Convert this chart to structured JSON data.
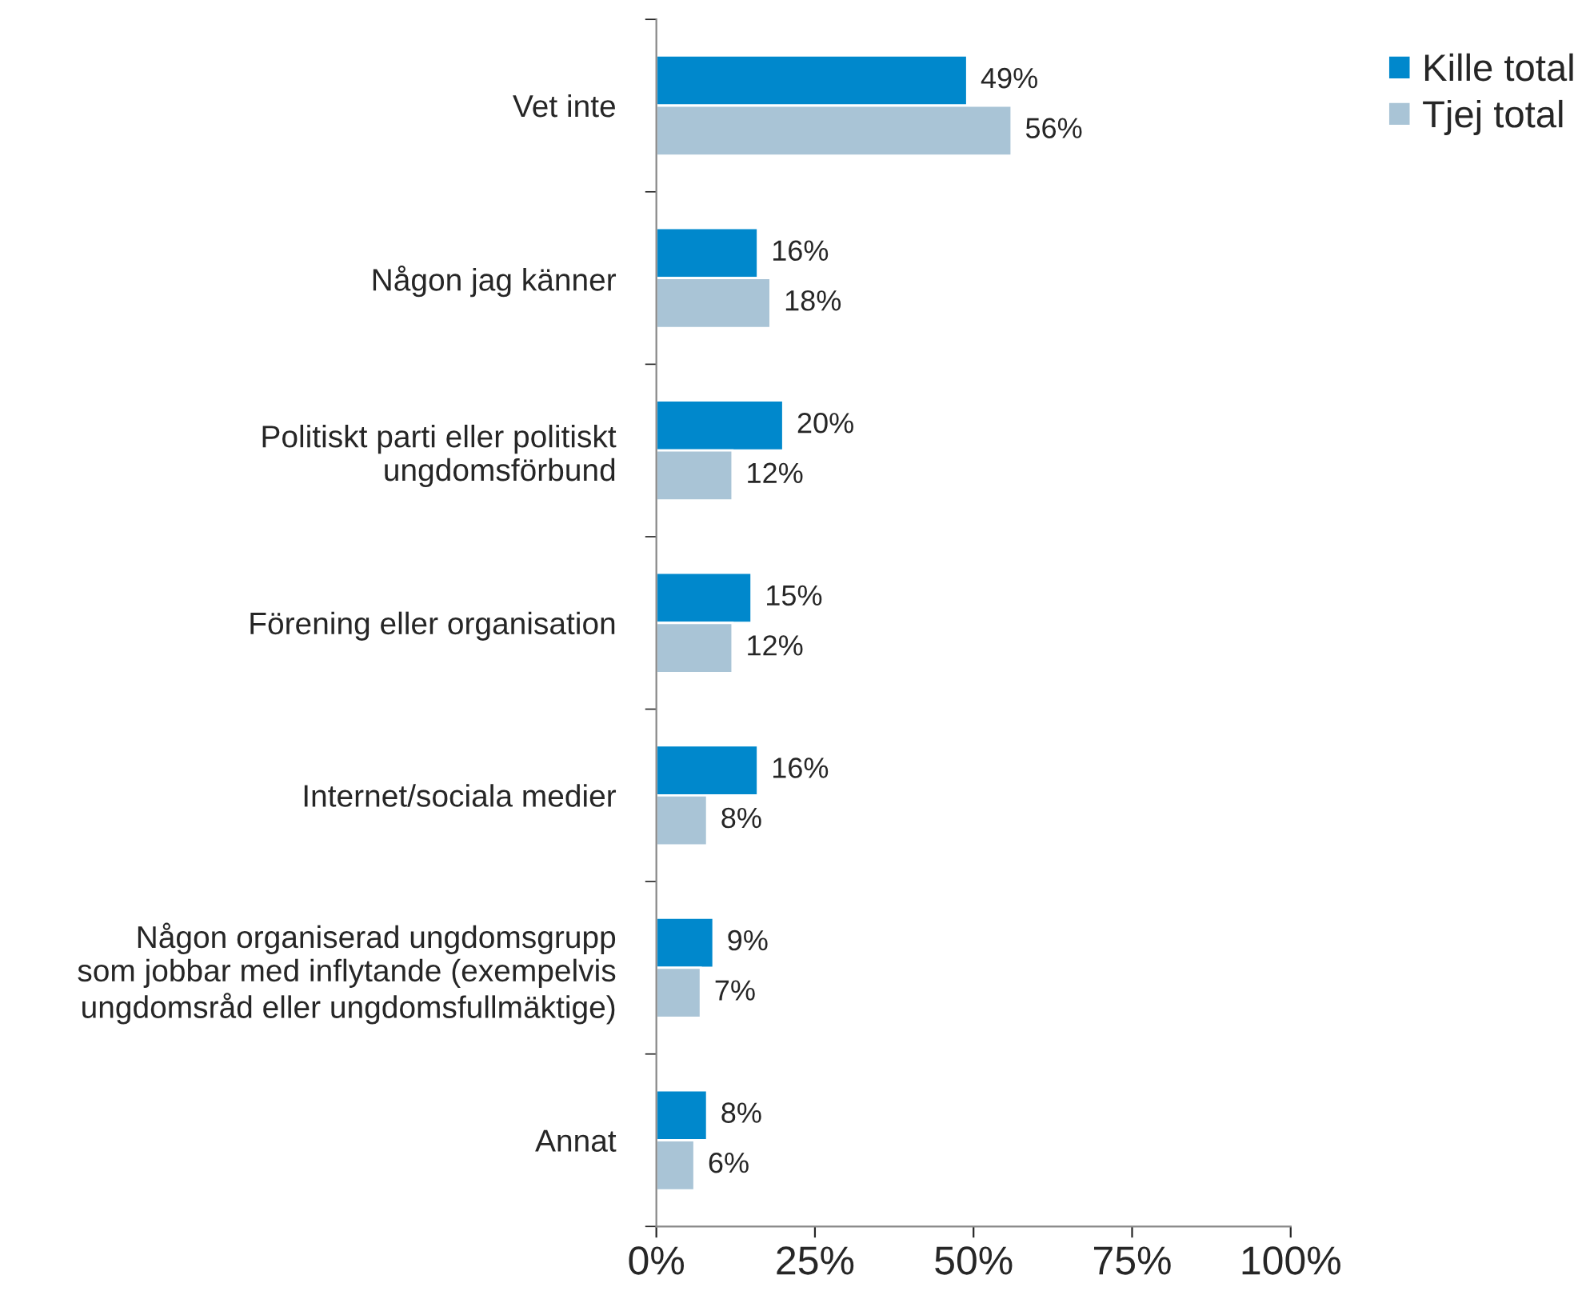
{
  "chart_data": {
    "type": "bar",
    "orientation": "horizontal",
    "categories": [
      "Vet inte",
      "Någon jag känner",
      "Politiskt parti eller politiskt\nungdomsförbund",
      "Förening eller organisation",
      "Internet/sociala medier",
      "Någon organiserad ungdomsgrupp\nsom jobbar med inflytande (exempelvis\nungdomsråd eller ungdomsfullmäktige)",
      "Annat"
    ],
    "series": [
      {
        "name": "Kille total",
        "color": "#0088cc",
        "values": [
          49,
          16,
          20,
          15,
          16,
          9,
          8
        ],
        "value_labels": [
          "49%",
          "16%",
          "20%",
          "15%",
          "16%",
          "9%",
          "8%"
        ]
      },
      {
        "name": "Tjej total",
        "color": "#a9c4d6",
        "values": [
          56,
          18,
          12,
          12,
          8,
          7,
          6
        ],
        "value_labels": [
          "56%",
          "18%",
          "12%",
          "12%",
          "8%",
          "7%",
          "6%"
        ]
      }
    ],
    "xlim": [
      0,
      100
    ],
    "xticks": [
      {
        "value": 0,
        "label": "0%"
      },
      {
        "value": 25,
        "label": "25%"
      },
      {
        "value": 50,
        "label": "50%"
      },
      {
        "value": 75,
        "label": "75%"
      },
      {
        "value": 100,
        "label": "100%"
      }
    ],
    "grid": false,
    "legend": "top right"
  }
}
